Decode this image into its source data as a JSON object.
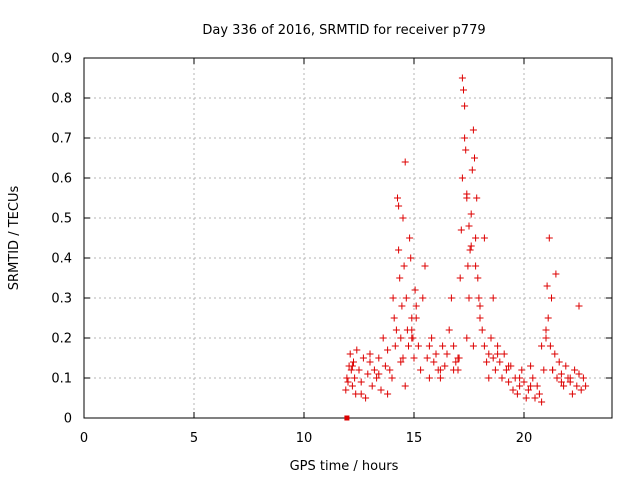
{
  "chart_data": {
    "type": "scatter",
    "title": "Day 336 of 2016, SRMTID for receiver p779",
    "xlabel": "GPS time / hours",
    "ylabel": "SRMTID / TECUs",
    "xlim": [
      0,
      24
    ],
    "ylim": [
      0,
      0.9
    ],
    "xticks": [
      0,
      5,
      10,
      15,
      20
    ],
    "xtick_labels": [
      "0",
      "5",
      "10",
      "15",
      "20"
    ],
    "yticks": [
      0,
      0.1,
      0.2,
      0.3,
      0.4,
      0.5,
      0.6,
      0.7,
      0.8,
      0.9
    ],
    "ytick_labels": [
      "0",
      "0.1",
      "0.2",
      "0.3",
      "0.4",
      "0.5",
      "0.6",
      "0.7",
      "0.8",
      "0.9"
    ],
    "grid": true,
    "marker": "+",
    "series": [
      {
        "name": "SRMTID",
        "color": "#dd0000",
        "x": [
          11.9,
          11.95,
          12.0,
          12.05,
          12.1,
          12.15,
          12.2,
          12.25,
          12.3,
          12.35,
          12.4,
          12.5,
          12.6,
          12.7,
          12.8,
          12.9,
          13.0,
          13.1,
          13.2,
          13.3,
          13.4,
          13.5,
          13.6,
          13.7,
          13.8,
          13.9,
          14.0,
          14.05,
          14.1,
          14.15,
          14.2,
          14.25,
          14.3,
          14.35,
          14.4,
          14.45,
          14.5,
          14.55,
          14.6,
          14.65,
          14.7,
          14.75,
          14.8,
          14.85,
          14.9,
          14.95,
          15.0,
          15.05,
          15.1,
          15.2,
          15.3,
          15.4,
          15.5,
          15.6,
          15.7,
          15.8,
          15.9,
          16.0,
          16.1,
          16.2,
          16.3,
          16.4,
          16.5,
          16.6,
          16.7,
          16.8,
          16.9,
          17.0,
          17.05,
          17.1,
          17.15,
          17.2,
          17.25,
          17.3,
          17.35,
          17.4,
          17.45,
          17.5,
          17.55,
          17.6,
          17.65,
          17.7,
          17.75,
          17.8,
          17.85,
          17.9,
          17.95,
          18.0,
          18.1,
          18.2,
          18.3,
          18.4,
          18.5,
          18.6,
          18.7,
          18.8,
          18.9,
          19.0,
          19.1,
          19.2,
          19.3,
          19.4,
          19.5,
          19.6,
          19.7,
          19.8,
          19.9,
          20.0,
          20.1,
          20.2,
          20.3,
          20.4,
          20.5,
          20.6,
          20.7,
          20.8,
          20.9,
          21.0,
          21.1,
          21.2,
          21.3,
          21.4,
          21.5,
          21.6,
          21.7,
          21.8,
          21.9,
          22.0,
          22.1,
          22.2,
          22.3,
          22.4,
          22.5,
          22.6,
          22.7,
          22.8,
          12.2,
          12.6,
          13.0,
          13.4,
          13.8,
          14.4,
          14.6,
          14.9,
          15.7,
          16.2,
          16.8,
          17.0,
          17.4,
          17.7,
          18.0,
          18.4,
          18.8,
          19.3,
          19.8,
          20.3,
          20.8,
          21.0,
          21.3,
          21.7,
          22.1,
          22.5,
          14.3,
          14.5,
          14.9,
          15.1,
          17.2,
          17.3,
          17.4,
          17.5,
          17.6,
          17.8,
          18.2,
          18.6,
          21.05,
          21.15,
          21.25,
          21.45
        ],
        "y": [
          0.07,
          0.1,
          0.09,
          0.13,
          0.16,
          0.12,
          0.08,
          0.14,
          0.1,
          0.06,
          0.17,
          0.12,
          0.09,
          0.15,
          0.05,
          0.11,
          0.14,
          0.08,
          0.12,
          0.1,
          0.15,
          0.07,
          0.2,
          0.13,
          0.17,
          0.12,
          0.1,
          0.3,
          0.25,
          0.18,
          0.22,
          0.55,
          0.42,
          0.35,
          0.2,
          0.28,
          0.15,
          0.38,
          0.64,
          0.3,
          0.22,
          0.18,
          0.45,
          0.4,
          0.25,
          0.2,
          0.15,
          0.32,
          0.28,
          0.18,
          0.12,
          0.3,
          0.38,
          0.15,
          0.1,
          0.2,
          0.14,
          0.16,
          0.12,
          0.1,
          0.18,
          0.13,
          0.16,
          0.22,
          0.3,
          0.18,
          0.14,
          0.12,
          0.15,
          0.35,
          0.47,
          0.85,
          0.82,
          0.78,
          0.67,
          0.56,
          0.38,
          0.3,
          0.42,
          0.51,
          0.62,
          0.72,
          0.65,
          0.45,
          0.55,
          0.35,
          0.3,
          0.25,
          0.22,
          0.18,
          0.14,
          0.1,
          0.2,
          0.15,
          0.12,
          0.18,
          0.14,
          0.1,
          0.16,
          0.12,
          0.09,
          0.13,
          0.07,
          0.1,
          0.06,
          0.08,
          0.12,
          0.09,
          0.05,
          0.07,
          0.13,
          0.1,
          0.05,
          0.08,
          0.06,
          0.04,
          0.12,
          0.2,
          0.25,
          0.18,
          0.12,
          0.16,
          0.1,
          0.14,
          0.11,
          0.08,
          0.13,
          0.1,
          0.09,
          0.06,
          0.12,
          0.08,
          0.11,
          0.07,
          0.1,
          0.08,
          0.13,
          0.06,
          0.16,
          0.11,
          0.06,
          0.14,
          0.08,
          0.22,
          0.18,
          0.12,
          0.12,
          0.15,
          0.2,
          0.18,
          0.28,
          0.16,
          0.16,
          0.13,
          0.1,
          0.08,
          0.18,
          0.22,
          0.12,
          0.09,
          0.1,
          0.28,
          0.53,
          0.5,
          0.2,
          0.25,
          0.6,
          0.7,
          0.55,
          0.48,
          0.43,
          0.38,
          0.45,
          0.3,
          0.33,
          0.45,
          0.3,
          0.36
        ],
        "markers": [
          {
            "x": 11.95,
            "y": 0.0,
            "symbol": "square"
          }
        ]
      }
    ]
  }
}
